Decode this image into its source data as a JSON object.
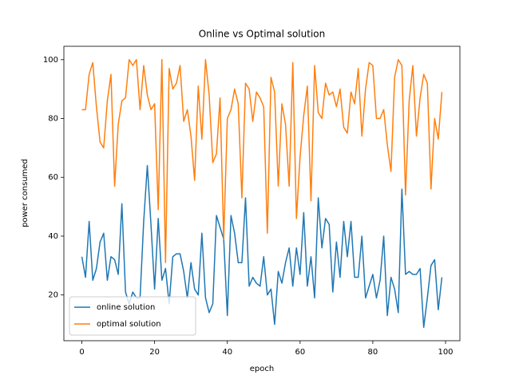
{
  "chart_data": {
    "type": "line",
    "title": "Online vs Optimal solution",
    "x_label": "epoch",
    "y_label": "power consumed",
    "x": [
      0,
      1,
      2,
      3,
      4,
      5,
      6,
      7,
      8,
      9,
      10,
      11,
      12,
      13,
      14,
      15,
      16,
      17,
      18,
      19,
      20,
      21,
      22,
      23,
      24,
      25,
      26,
      27,
      28,
      29,
      30,
      31,
      32,
      33,
      34,
      35,
      36,
      37,
      38,
      39,
      40,
      41,
      42,
      43,
      44,
      45,
      46,
      47,
      48,
      49,
      50,
      51,
      52,
      53,
      54,
      55,
      56,
      57,
      58,
      59,
      60,
      61,
      62,
      63,
      64,
      65,
      66,
      67,
      68,
      69,
      70,
      71,
      72,
      73,
      74,
      75,
      76,
      77,
      78,
      79,
      80,
      81,
      82,
      83,
      84,
      85,
      86,
      87,
      88,
      89,
      90,
      91,
      92,
      93,
      94,
      95,
      96,
      97,
      98,
      99
    ],
    "series": [
      {
        "name": "online solution",
        "color": "#1f77b4",
        "values": [
          33,
          26,
          45,
          25,
          29,
          38,
          41,
          25,
          33,
          32,
          27,
          51,
          21,
          17,
          21,
          19,
          19,
          45,
          64,
          44,
          22,
          46,
          25,
          29,
          17,
          33,
          34,
          34,
          28,
          19,
          31,
          22,
          20,
          41,
          19,
          14,
          17,
          47,
          43,
          39,
          13,
          47,
          41,
          31,
          31,
          53,
          23,
          26,
          24,
          23,
          33,
          20,
          22,
          10,
          28,
          24,
          31,
          36,
          23,
          36,
          27,
          48,
          23,
          33,
          19,
          53,
          36,
          46,
          44,
          21,
          38,
          26,
          45,
          33,
          45,
          26,
          26,
          40,
          19,
          23,
          27,
          19,
          25,
          40,
          13,
          26,
          22,
          14,
          56,
          27,
          28,
          27,
          27,
          29,
          9,
          19,
          30,
          32,
          15,
          26
        ]
      },
      {
        "name": "optimal solution",
        "color": "#ff7f0e",
        "values": [
          83,
          83,
          95,
          99,
          84,
          72,
          70,
          86,
          95,
          57,
          78,
          86,
          87,
          100,
          98,
          100,
          83,
          98,
          88,
          83,
          85,
          49,
          100,
          31,
          97,
          90,
          92,
          98,
          79,
          83,
          74,
          59,
          91,
          73,
          100,
          88,
          65,
          68,
          87,
          39,
          80,
          83,
          90,
          85,
          53,
          92,
          90,
          79,
          89,
          87,
          84,
          41,
          94,
          89,
          57,
          85,
          78,
          57,
          99,
          46,
          67,
          81,
          91,
          52,
          98,
          82,
          80,
          92,
          88,
          89,
          84,
          90,
          77,
          75,
          89,
          85,
          97,
          74,
          90,
          99,
          98,
          80,
          80,
          83,
          71,
          62,
          94,
          100,
          98,
          54,
          86,
          98,
          74,
          87,
          95,
          92,
          56,
          80,
          73,
          89
        ]
      }
    ],
    "xlim": [
      -4.95,
      103.95
    ],
    "ylim": [
      4.45,
      104.55
    ],
    "xticks": [
      0,
      20,
      40,
      60,
      80,
      100
    ],
    "yticks": [
      20,
      40,
      60,
      80,
      100
    ],
    "legend": "lower left"
  }
}
